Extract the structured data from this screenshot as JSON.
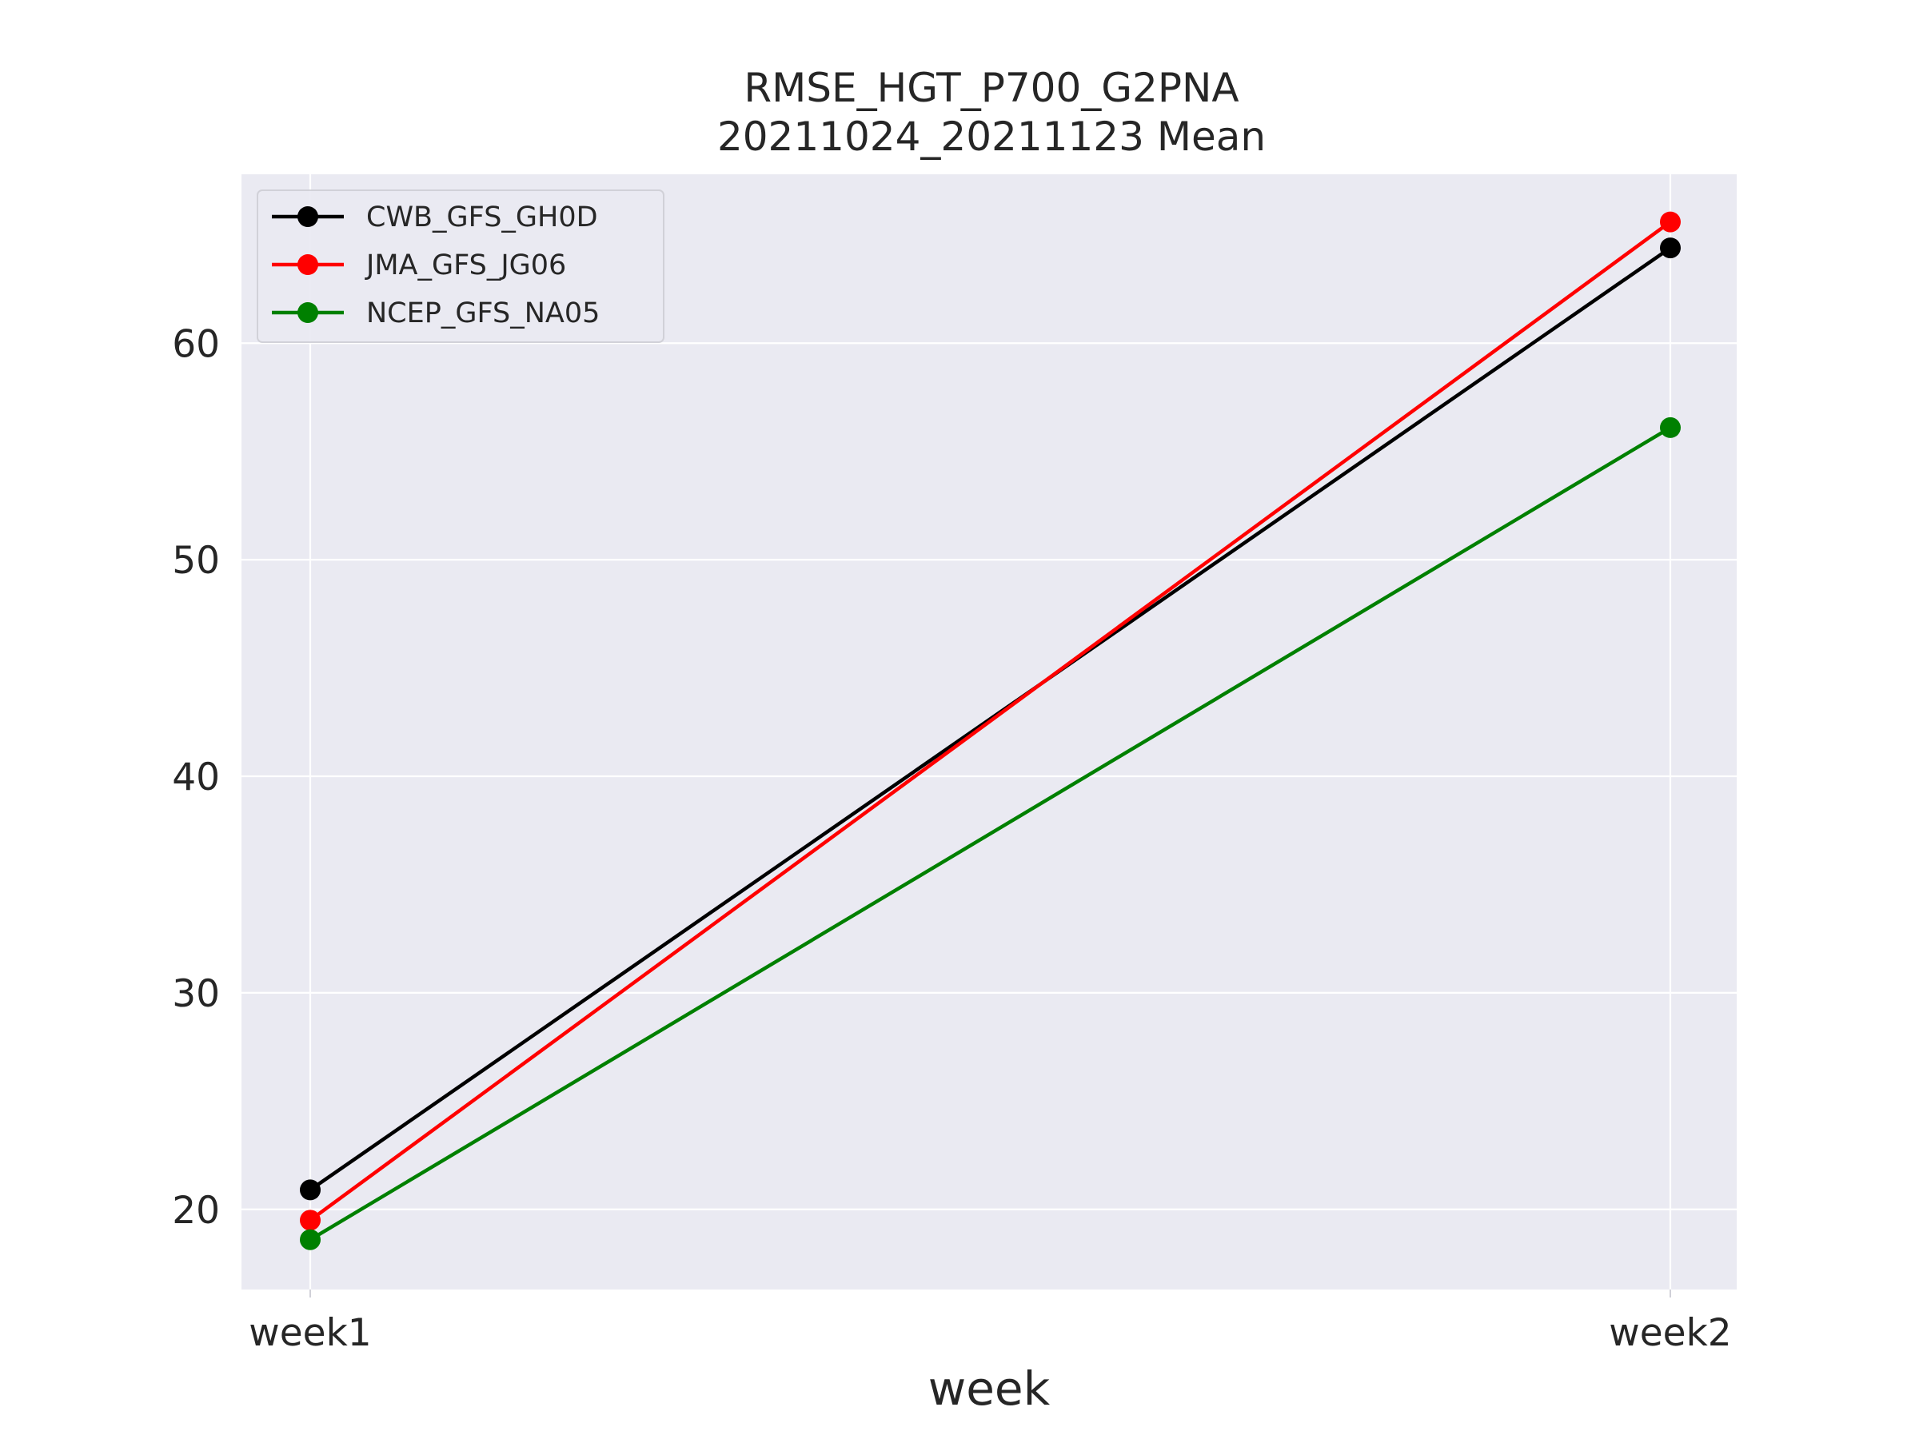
{
  "chart_data": {
    "type": "line",
    "title": "RMSE_HGT_P700_G2PNA",
    "subtitle": "20211024_20211123 Mean",
    "xlabel": "week",
    "ylabel": "",
    "categories": [
      "week1",
      "week2"
    ],
    "ylim": [
      16.3,
      67.8
    ],
    "yticks": [
      20,
      30,
      40,
      50,
      60
    ],
    "ytick_labels": [
      "20",
      "30",
      "40",
      "50",
      "60"
    ],
    "grid": true,
    "legend_position": "top-left",
    "background": "#eaeaf2",
    "series": [
      {
        "name": "CWB_GFS_GH0D",
        "color": "#000000",
        "values": [
          20.9,
          64.4
        ]
      },
      {
        "name": "JMA_GFS_JG06",
        "color": "#ff0000",
        "values": [
          19.5,
          65.6
        ]
      },
      {
        "name": "NCEP_GFS_NA05",
        "color": "#008000",
        "values": [
          18.6,
          56.1
        ]
      }
    ]
  }
}
